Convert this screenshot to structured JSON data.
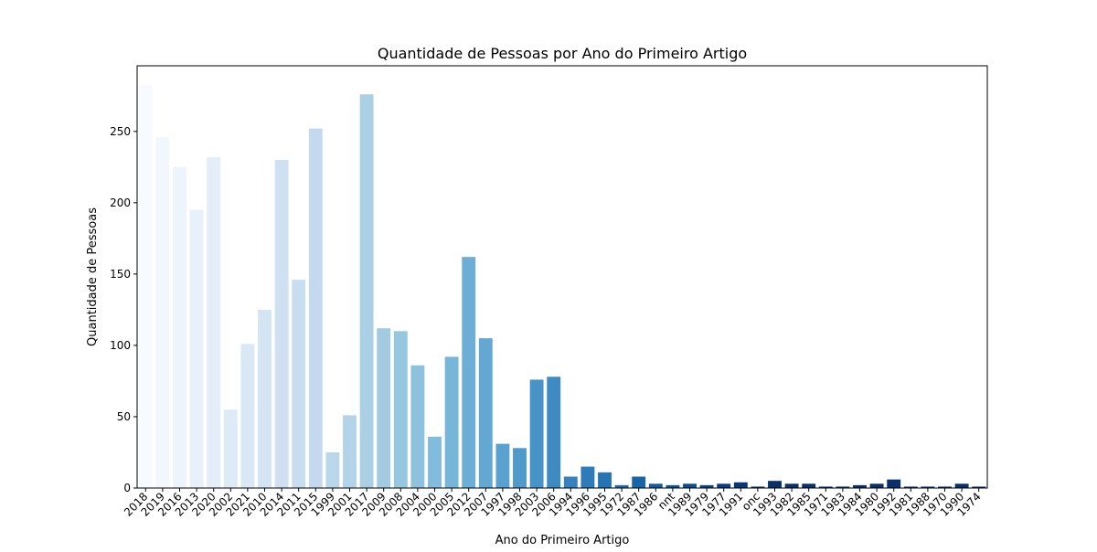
{
  "chart_data": {
    "type": "bar",
    "title": "Quantidade de Pessoas por Ano do Primeiro Artigo",
    "xlabel": "Ano do Primeiro Artigo",
    "ylabel": "Quantidade de Pessoas",
    "ylim": [
      0,
      296
    ],
    "yticks": [
      0,
      50,
      100,
      150,
      200,
      250
    ],
    "grid": false,
    "legend": "none",
    "palette": "Blues (light to dark, left to right)",
    "categories": [
      "2018",
      "2019",
      "2016",
      "2013",
      "2020",
      "2002",
      "2021",
      "2010",
      "2014",
      "2011",
      "2015",
      "1999",
      "2001",
      "2017",
      "2009",
      "2008",
      "2004",
      "2000",
      "2005",
      "2012",
      "2007",
      "1997",
      "1998",
      "2003",
      "2006",
      "1994",
      "1996",
      "1995",
      "1972",
      "1987",
      "1986",
      "nnt",
      "1989",
      "1979",
      "1977",
      "1991",
      "onc",
      "1993",
      "1982",
      "1985",
      "1971",
      "1983",
      "1984",
      "1980",
      "1992",
      "1981",
      "1988",
      "1970",
      "1990",
      "1974"
    ],
    "values": [
      283,
      246,
      225,
      195,
      232,
      55,
      101,
      125,
      230,
      146,
      252,
      25,
      51,
      276,
      112,
      110,
      86,
      36,
      92,
      162,
      105,
      31,
      28,
      76,
      78,
      8,
      15,
      11,
      2,
      8,
      3,
      2,
      3,
      2,
      3,
      4,
      1,
      5,
      3,
      3,
      1,
      1,
      2,
      3,
      6,
      1,
      1,
      1,
      3,
      1
    ],
    "colors": [
      "#f7fbff",
      "#f2f7fd",
      "#edf4fc",
      "#e8f1fa",
      "#e3eef9",
      "#deebf7",
      "#d9e8f5",
      "#d3e4f3",
      "#cee0f2",
      "#c9ddf0",
      "#c2d9ee",
      "#bad6eb",
      "#b3d3e8",
      "#abd0e6",
      "#a2cbe2",
      "#97c6df",
      "#8dc1dd",
      "#82bbdb",
      "#77b5d9",
      "#6caed6",
      "#63a7d3",
      "#59a1cf",
      "#5099cb",
      "#4792c6",
      "#3e8ac2",
      "#3582be",
      "#2d7bb9",
      "#2674b3",
      "#1f6cad",
      "#1764a7",
      "#115ca1",
      "#0b559b",
      "#084d93",
      "#08468a",
      "#083e81",
      "#083778",
      "#08306b",
      "#08306b",
      "#08306b",
      "#08306b",
      "#08306b",
      "#08306b",
      "#08306b",
      "#08306b",
      "#08306b",
      "#08306b",
      "#08306b",
      "#08306b",
      "#08306b",
      "#08306b"
    ]
  }
}
